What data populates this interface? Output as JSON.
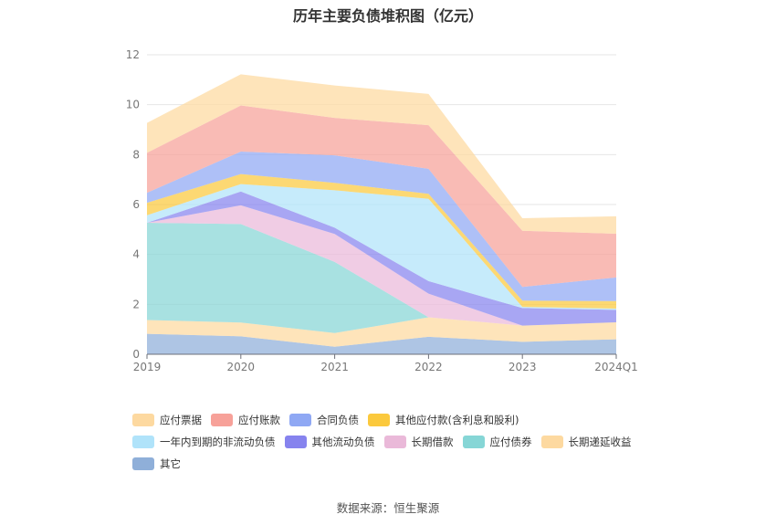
{
  "title": "历年主要负债堆积图（亿元）",
  "source": "数据来源：恒生聚源",
  "chart_data": {
    "type": "area",
    "stacked": true,
    "x": [
      "2019",
      "2020",
      "2021",
      "2022",
      "2023",
      "2024Q1"
    ],
    "ylim": [
      0,
      12
    ],
    "yticks": [
      0,
      2,
      4,
      6,
      8,
      10,
      12
    ],
    "grid": true,
    "legend_position": "bottom",
    "series": [
      {
        "name": "其它",
        "color": "#8fafd9",
        "values": [
          0.82,
          0.72,
          0.3,
          0.7,
          0.5,
          0.6
        ]
      },
      {
        "name": "长期递延收益",
        "color": "#fdd9a0",
        "values": [
          0.55,
          0.55,
          0.55,
          0.78,
          0.65,
          0.68
        ]
      },
      {
        "name": "应付债券",
        "color": "#86d6d6",
        "values": [
          3.9,
          3.95,
          2.85,
          0.0,
          0.0,
          0.0
        ]
      },
      {
        "name": "长期借款",
        "color": "#eab9d9",
        "values": [
          0.0,
          0.75,
          1.12,
          0.95,
          0.0,
          0.0
        ]
      },
      {
        "name": "其他流动负债",
        "color": "#8683ee",
        "values": [
          0.0,
          0.55,
          0.25,
          0.5,
          0.7,
          0.5
        ]
      },
      {
        "name": "一年内到期的非流动负债",
        "color": "#b0e3fa",
        "values": [
          0.3,
          0.3,
          1.5,
          3.3,
          0.05,
          0.05
        ]
      },
      {
        "name": "其他应付款(含利息和股利)",
        "color": "#fbc93d",
        "values": [
          0.5,
          0.4,
          0.3,
          0.2,
          0.25,
          0.3
        ]
      },
      {
        "name": "合同负债",
        "color": "#8fa8f4",
        "values": [
          0.4,
          0.9,
          1.1,
          1.0,
          0.55,
          0.95
        ]
      },
      {
        "name": "应付账款",
        "color": "#f7a199",
        "values": [
          1.6,
          1.85,
          1.5,
          1.75,
          2.25,
          1.75
        ]
      },
      {
        "name": "应付票据",
        "color": "#fdd9a0",
        "values": [
          1.2,
          1.25,
          1.3,
          1.25,
          0.5,
          0.7
        ]
      }
    ]
  },
  "legend": [
    [
      "应付票据",
      "应付账款",
      "合同负债",
      "其他应付款(含利息和股利)"
    ],
    [
      "一年内到期的非流动负债",
      "其他流动负债",
      "长期借款",
      "应付债券",
      "长期递延收益"
    ],
    [
      "其它"
    ]
  ]
}
